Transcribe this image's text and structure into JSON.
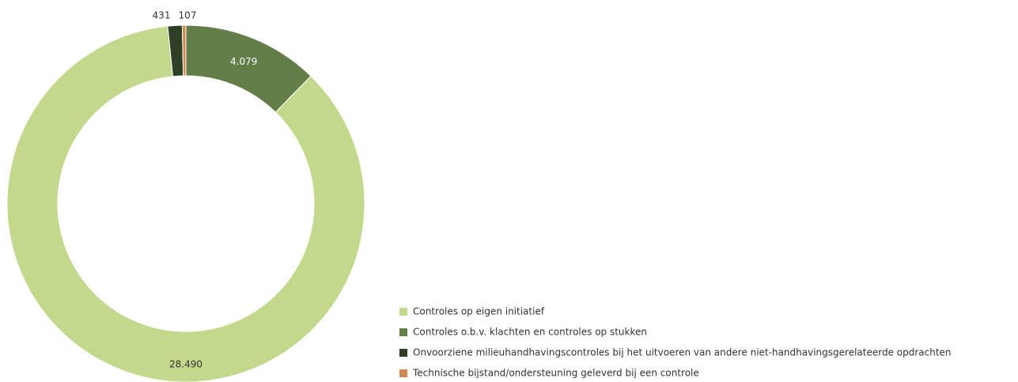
{
  "chart_data": {
    "type": "donut",
    "categories": [
      "Controles op eigen initiatief",
      "Controles o.b.v. klachten en controles op stukken",
      "Onvoorziene milieuhandhavingscontroles bij het uitvoeren van andere niet-handhavingsgerelateerde opdrachten",
      "Technische bijstand/ondersteuning geleverd bij een controle"
    ],
    "values": [
      28490,
      4079,
      431,
      107
    ],
    "value_labels": [
      "28.490",
      "4.079",
      "431",
      "107"
    ],
    "colors": [
      "#c2d98c",
      "#627d48",
      "#2e3f25",
      "#d08a4e"
    ],
    "legend": "bottom-right"
  }
}
